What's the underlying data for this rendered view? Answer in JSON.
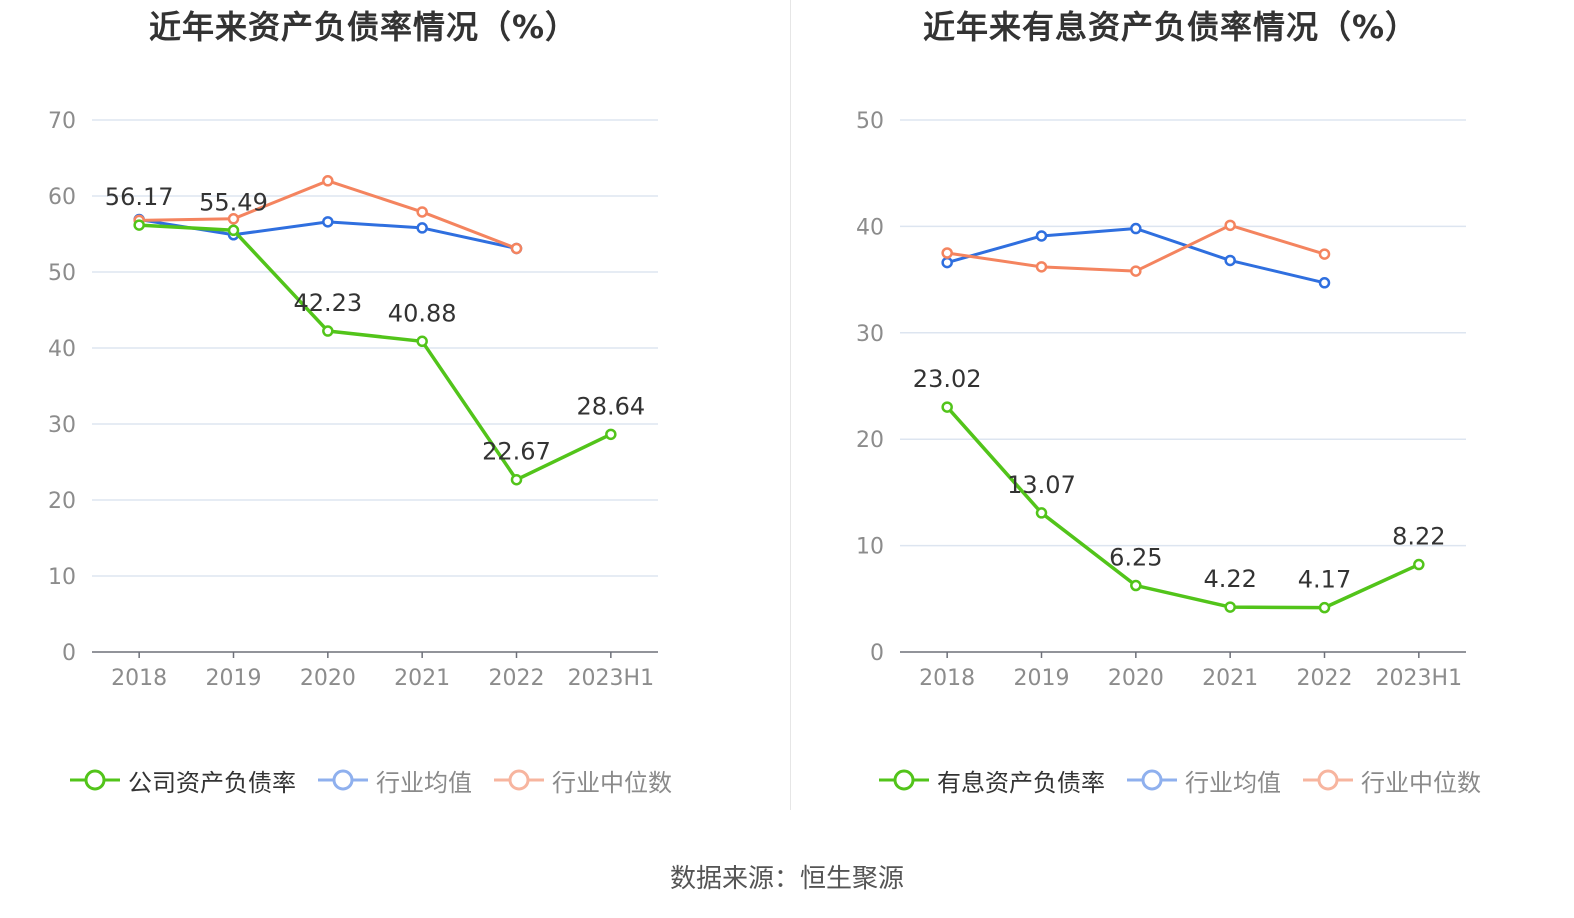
{
  "charts": [
    {
      "title": "近年来资产负债率情况（%）",
      "legend": [
        {
          "label": "公司资产负债率",
          "color": "#52c41a",
          "active": true
        },
        {
          "label": "行业均值",
          "color": "#2f6fdf",
          "active": false
        },
        {
          "label": "行业中位数",
          "color": "#f4845f",
          "active": false
        }
      ]
    },
    {
      "title": "近年来有息资产负债率情况（%）",
      "legend": [
        {
          "label": "有息资产负债率",
          "color": "#52c41a",
          "active": true
        },
        {
          "label": "行业均值",
          "color": "#2f6fdf",
          "active": false
        },
        {
          "label": "行业中位数",
          "color": "#f4845f",
          "active": false
        }
      ]
    }
  ],
  "source": "数据来源：恒生聚源",
  "chart_data": [
    {
      "type": "line",
      "title": "近年来资产负债率情况（%）",
      "categories": [
        "2018",
        "2019",
        "2020",
        "2021",
        "2022",
        "2023H1"
      ],
      "ylim": [
        0,
        70
      ],
      "yticks": [
        0,
        10,
        20,
        30,
        40,
        50,
        60,
        70
      ],
      "grid": true,
      "legend_position": "bottom",
      "series": [
        {
          "name": "公司资产负债率",
          "color": "#52c41a",
          "values": [
            56.17,
            55.49,
            42.23,
            40.88,
            22.67,
            28.64
          ],
          "labels": [
            "56.17",
            "55.49",
            "42.23",
            "40.88",
            "22.67",
            "28.64"
          ]
        },
        {
          "name": "行业均值",
          "color": "#2f6fdf",
          "values": [
            56.9,
            54.9,
            56.6,
            55.8,
            53.1,
            null
          ]
        },
        {
          "name": "行业中位数",
          "color": "#f4845f",
          "values": [
            56.8,
            57.0,
            62.0,
            57.9,
            53.1,
            null
          ]
        }
      ]
    },
    {
      "type": "line",
      "title": "近年来有息资产负债率情况（%）",
      "categories": [
        "2018",
        "2019",
        "2020",
        "2021",
        "2022",
        "2023H1"
      ],
      "ylim": [
        0,
        50
      ],
      "yticks": [
        0,
        10,
        20,
        30,
        40,
        50
      ],
      "grid": true,
      "legend_position": "bottom",
      "series": [
        {
          "name": "有息资产负债率",
          "color": "#52c41a",
          "values": [
            23.02,
            13.07,
            6.25,
            4.22,
            4.17,
            8.22
          ],
          "labels": [
            "23.02",
            "13.07",
            "6.25",
            "4.22",
            "4.17",
            "8.22"
          ]
        },
        {
          "name": "行业均值",
          "color": "#2f6fdf",
          "values": [
            36.6,
            39.1,
            39.8,
            36.8,
            34.7,
            null
          ]
        },
        {
          "name": "行业中位数",
          "color": "#f4845f",
          "values": [
            37.5,
            36.2,
            35.8,
            40.1,
            37.4,
            null
          ]
        }
      ]
    }
  ]
}
